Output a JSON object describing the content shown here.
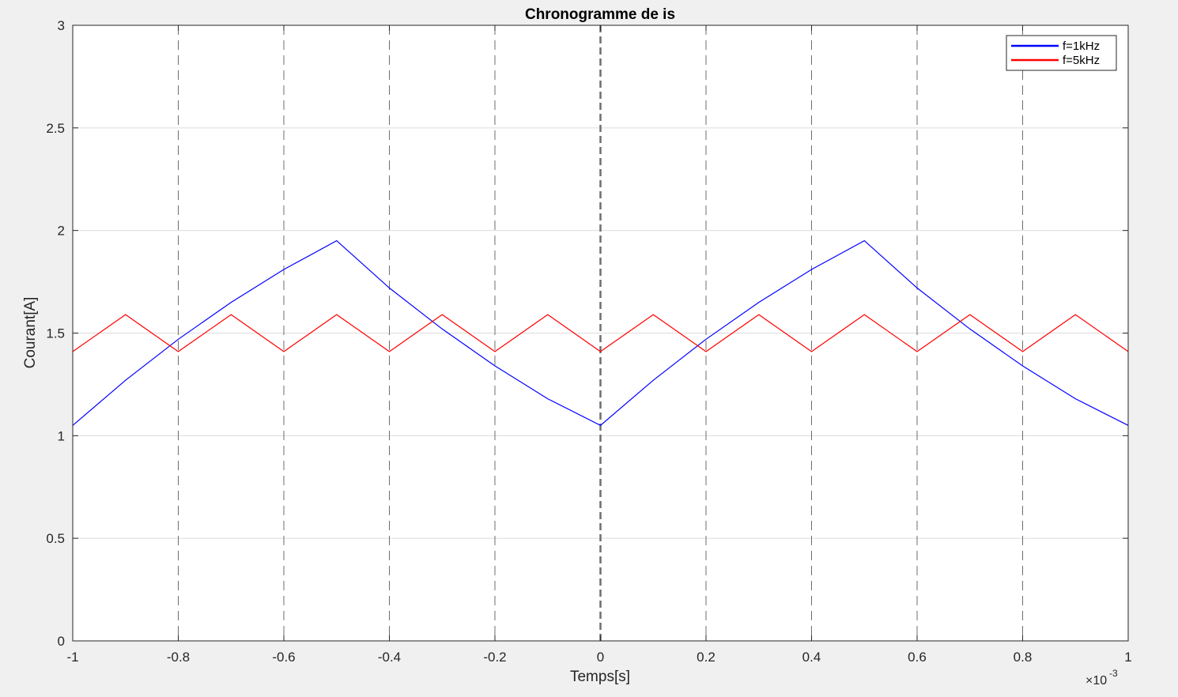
{
  "chart_data": {
    "type": "line",
    "title": "Chronogramme de is",
    "xlabel": "Temps[s]",
    "ylabel": "Courant[A]",
    "x_exponent_base": "×10",
    "x_exponent_power": "-3",
    "xlim": [
      -1,
      1
    ],
    "ylim": [
      0,
      3
    ],
    "x_ticks": [
      -1,
      -0.8,
      -0.6,
      -0.4,
      -0.2,
      0,
      0.2,
      0.4,
      0.6,
      0.8,
      1
    ],
    "x_tick_labels": [
      "-1",
      "-0.8",
      "-0.6",
      "-0.4",
      "-0.2",
      "0",
      "0.2",
      "0.4",
      "0.6",
      "0.8",
      "1"
    ],
    "y_ticks": [
      0,
      0.5,
      1,
      1.5,
      2,
      2.5,
      3
    ],
    "y_tick_labels": [
      "0",
      "0.5",
      "1",
      "1.5",
      "2",
      "2.5",
      "3"
    ],
    "grid": true,
    "vertical_dashed_lines": [
      -1,
      -0.8,
      -0.6,
      -0.4,
      -0.2,
      0,
      0.2,
      0.4,
      0.6,
      0.8,
      1
    ],
    "legend_position": "top-right",
    "series": [
      {
        "name": "f=1kHz",
        "color": "#0000ff",
        "x": [
          -1,
          -0.9,
          -0.8,
          -0.7,
          -0.6,
          -0.5,
          -0.4,
          -0.3,
          -0.2,
          -0.1,
          0,
          0.1,
          0.2,
          0.3,
          0.4,
          0.5,
          0.6,
          0.7,
          0.8,
          0.9,
          1
        ],
        "y": [
          1.05,
          1.27,
          1.47,
          1.65,
          1.81,
          1.95,
          1.72,
          1.52,
          1.34,
          1.18,
          1.05,
          1.27,
          1.47,
          1.65,
          1.81,
          1.95,
          1.72,
          1.52,
          1.34,
          1.18,
          1.05
        ]
      },
      {
        "name": "f=5kHz",
        "color": "#ff0000",
        "x": [
          -1,
          -0.9,
          -0.8,
          -0.7,
          -0.6,
          -0.5,
          -0.4,
          -0.3,
          -0.2,
          -0.1,
          0,
          0.1,
          0.2,
          0.3,
          0.4,
          0.5,
          0.6,
          0.7,
          0.8,
          0.9,
          1
        ],
        "y": [
          1.41,
          1.59,
          1.41,
          1.59,
          1.41,
          1.59,
          1.41,
          1.59,
          1.41,
          1.59,
          1.41,
          1.59,
          1.41,
          1.59,
          1.41,
          1.59,
          1.41,
          1.59,
          1.41,
          1.59,
          1.41
        ]
      }
    ]
  }
}
